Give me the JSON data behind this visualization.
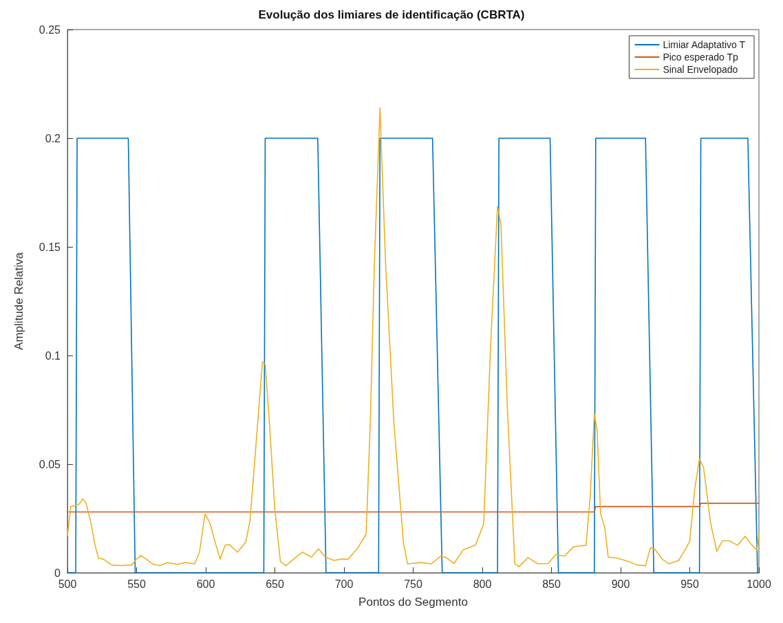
{
  "chart_data": {
    "type": "line",
    "title": "Evolução dos limiares de identificação (CBRTA)",
    "xlabel": "Pontos do Segmento",
    "ylabel": "Amplitude Relativa",
    "xlim": [
      500,
      1000
    ],
    "xticks": [
      500,
      550,
      600,
      650,
      700,
      750,
      800,
      850,
      900,
      950,
      1000
    ],
    "ylim": [
      0,
      0.25
    ],
    "yticks": [
      0,
      0.05,
      0.1,
      0.15,
      0.2,
      0.25
    ],
    "grid": false,
    "legend": "top right",
    "marker": "none",
    "line_style": "solid",
    "series": [
      {
        "name": "Limiar Adaptativo T",
        "color": "#0072bd",
        "x": [
          500,
          506,
          507,
          544,
          549,
          642,
          643,
          681,
          687,
          725,
          726,
          764,
          771,
          811,
          812,
          849,
          855,
          881,
          882,
          918,
          924,
          957,
          958,
          992,
          999,
          1000
        ],
        "values": [
          0,
          0,
          0.2,
          0.2,
          0,
          0,
          0.2,
          0.2,
          0,
          0,
          0.2,
          0.2,
          0,
          0,
          0.2,
          0.2,
          0,
          0,
          0.2,
          0.2,
          0,
          0,
          0.2,
          0.2,
          0,
          0
        ]
      },
      {
        "name": "Pico esperado Tp",
        "color": "#d95319",
        "x": [
          501,
          881,
          882,
          957,
          958,
          1000
        ],
        "values": [
          0.028,
          0.028,
          0.0305,
          0.0305,
          0.032,
          0.032
        ]
      },
      {
        "name": "Sinal Envelopado",
        "color": "#edb120",
        "x": [
          500,
          502.5,
          506,
          508.5,
          511,
          513.5,
          517,
          520,
          522.5,
          526,
          532,
          539,
          546.5,
          550,
          553,
          557,
          562,
          567,
          572,
          579,
          585.5,
          592,
          595.5,
          599.5,
          603,
          607,
          610.5,
          614,
          617,
          623,
          629,
          632,
          635,
          641,
          643,
          646,
          650,
          654,
          658,
          663.5,
          670,
          676.5,
          681.5,
          686.5,
          692.5,
          698,
          703,
          710,
          716,
          719,
          722,
          726,
          730,
          736,
          743,
          746,
          756,
          763,
          770,
          774,
          779.5,
          786,
          795,
          801,
          806,
          811,
          813.5,
          818,
          823.5,
          826.5,
          833,
          840,
          847.5,
          853,
          859.5,
          866,
          875,
          878,
          881,
          883,
          885.5,
          888.5,
          891,
          898,
          905.5,
          912,
          918,
          921.5,
          924.5,
          930,
          935,
          942,
          947.5,
          950,
          953.5,
          957,
          960,
          965,
          969.5,
          973.5,
          978.5,
          984.5,
          990,
          995,
          998.5,
          1000
        ],
        "values": [
          0.017,
          0.0305,
          0.031,
          0.0316,
          0.034,
          0.032,
          0.023,
          0.0126,
          0.0067,
          0.0063,
          0.0036,
          0.0033,
          0.0036,
          0.0063,
          0.0079,
          0.0063,
          0.0039,
          0.0033,
          0.0047,
          0.0039,
          0.0047,
          0.0041,
          0.0095,
          0.027,
          0.023,
          0.0136,
          0.0063,
          0.0127,
          0.013,
          0.0095,
          0.0142,
          0.024,
          0.048,
          0.097,
          0.096,
          0.0696,
          0.029,
          0.0052,
          0.0032,
          0.0063,
          0.0095,
          0.0073,
          0.011,
          0.0073,
          0.0057,
          0.0063,
          0.0063,
          0.0115,
          0.0178,
          0.0696,
          0.143,
          0.214,
          0.143,
          0.0696,
          0.0136,
          0.0041,
          0.0047,
          0.0041,
          0.0077,
          0.007,
          0.0042,
          0.0105,
          0.0127,
          0.0225,
          0.105,
          0.1687,
          0.16,
          0.077,
          0.0042,
          0.0028,
          0.007,
          0.0042,
          0.0042,
          0.0084,
          0.0077,
          0.012,
          0.0127,
          0.035,
          0.0733,
          0.0655,
          0.0273,
          0.021,
          0.0073,
          0.0067,
          0.0052,
          0.0036,
          0.0032,
          0.0115,
          0.011,
          0.0063,
          0.0041,
          0.0057,
          0.0115,
          0.0147,
          0.038,
          0.0525,
          0.0484,
          0.0231,
          0.0099,
          0.0147,
          0.0147,
          0.0127,
          0.0168,
          0.0127,
          0.0104,
          0.0178
        ]
      }
    ]
  }
}
